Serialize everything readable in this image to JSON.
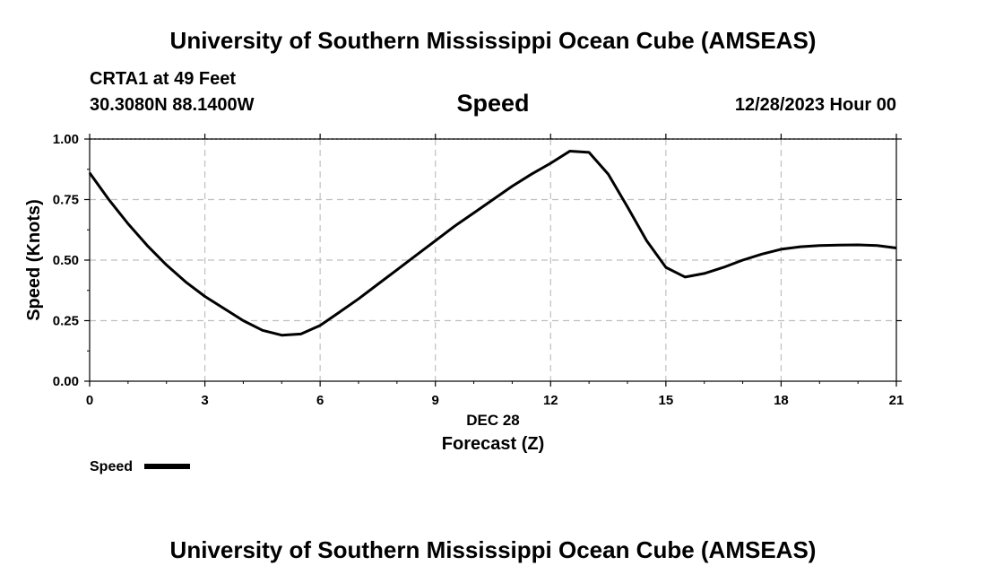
{
  "header": {
    "title": "University of Southern Mississippi Ocean Cube (AMSEAS)",
    "station": "CRTA1 at 49 Feet",
    "coords": "30.3080N  88.1400W",
    "parameter": "Speed",
    "datetime": "12/28/2023 Hour 00"
  },
  "footer": {
    "title": "University of Southern Mississippi Ocean Cube (AMSEAS)"
  },
  "chart_data": {
    "type": "line",
    "title": "Speed",
    "xlabel": "Forecast (Z)",
    "xlabel_date": "DEC 28",
    "ylabel": "Speed (Knots)",
    "xlim": [
      0,
      21
    ],
    "ylim": [
      0,
      1
    ],
    "x_ticks": [
      0,
      3,
      6,
      9,
      12,
      15,
      18,
      21
    ],
    "x_tick_labels": [
      "0",
      "3",
      "6",
      "9",
      "12",
      "15",
      "18",
      "21"
    ],
    "y_ticks": [
      0,
      0.25,
      0.5,
      0.75,
      1.0
    ],
    "y_tick_labels": [
      "0.00",
      "0.25",
      "0.50",
      "0.75",
      "1.00"
    ],
    "grid": true,
    "legend": [
      {
        "name": "Speed",
        "color": "#000000"
      }
    ],
    "series": [
      {
        "name": "Speed",
        "color": "#000000",
        "x": [
          0,
          0.5,
          1,
          1.5,
          2,
          2.5,
          3,
          3.5,
          4,
          4.5,
          5,
          5.5,
          6,
          6.5,
          7,
          7.5,
          8,
          8.5,
          9,
          9.5,
          10,
          10.5,
          11,
          11.5,
          12,
          12.5,
          13,
          13.5,
          14,
          14.5,
          15,
          15.5,
          16,
          16.5,
          17,
          17.5,
          18,
          18.5,
          19,
          19.5,
          20,
          20.5,
          21
        ],
        "values": [
          0.86,
          0.75,
          0.65,
          0.56,
          0.48,
          0.41,
          0.35,
          0.3,
          0.25,
          0.21,
          0.19,
          0.195,
          0.23,
          0.285,
          0.34,
          0.4,
          0.46,
          0.52,
          0.58,
          0.64,
          0.695,
          0.75,
          0.805,
          0.855,
          0.9,
          0.95,
          0.945,
          0.855,
          0.72,
          0.58,
          0.47,
          0.43,
          0.445,
          0.47,
          0.5,
          0.525,
          0.545,
          0.555,
          0.56,
          0.562,
          0.563,
          0.56,
          0.55
        ]
      }
    ]
  }
}
